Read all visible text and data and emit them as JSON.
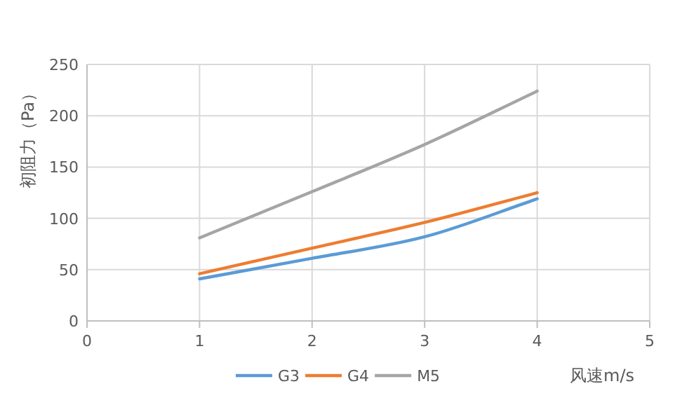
{
  "chart_data": {
    "type": "line",
    "xlabel": "风速m/s",
    "ylabel": "初阻力（Pa）",
    "x": [
      1,
      2,
      3,
      4
    ],
    "series": [
      {
        "name": "G3",
        "color": "#5b9bd5",
        "values": [
          41,
          61,
          82,
          119
        ]
      },
      {
        "name": "G4",
        "color": "#ed7d31",
        "values": [
          46,
          71,
          96,
          125
        ]
      },
      {
        "name": "M5",
        "color": "#a5a5a5",
        "values": [
          81,
          126,
          172,
          224
        ]
      }
    ],
    "xlim": [
      0,
      5
    ],
    "xticks": [
      0,
      1,
      2,
      3,
      4,
      5
    ],
    "ylim": [
      0,
      250
    ],
    "yticks": [
      0,
      50,
      100,
      150,
      200,
      250
    ],
    "grid": true,
    "legend": "bottom",
    "marker": "none",
    "line_style": "solid"
  }
}
